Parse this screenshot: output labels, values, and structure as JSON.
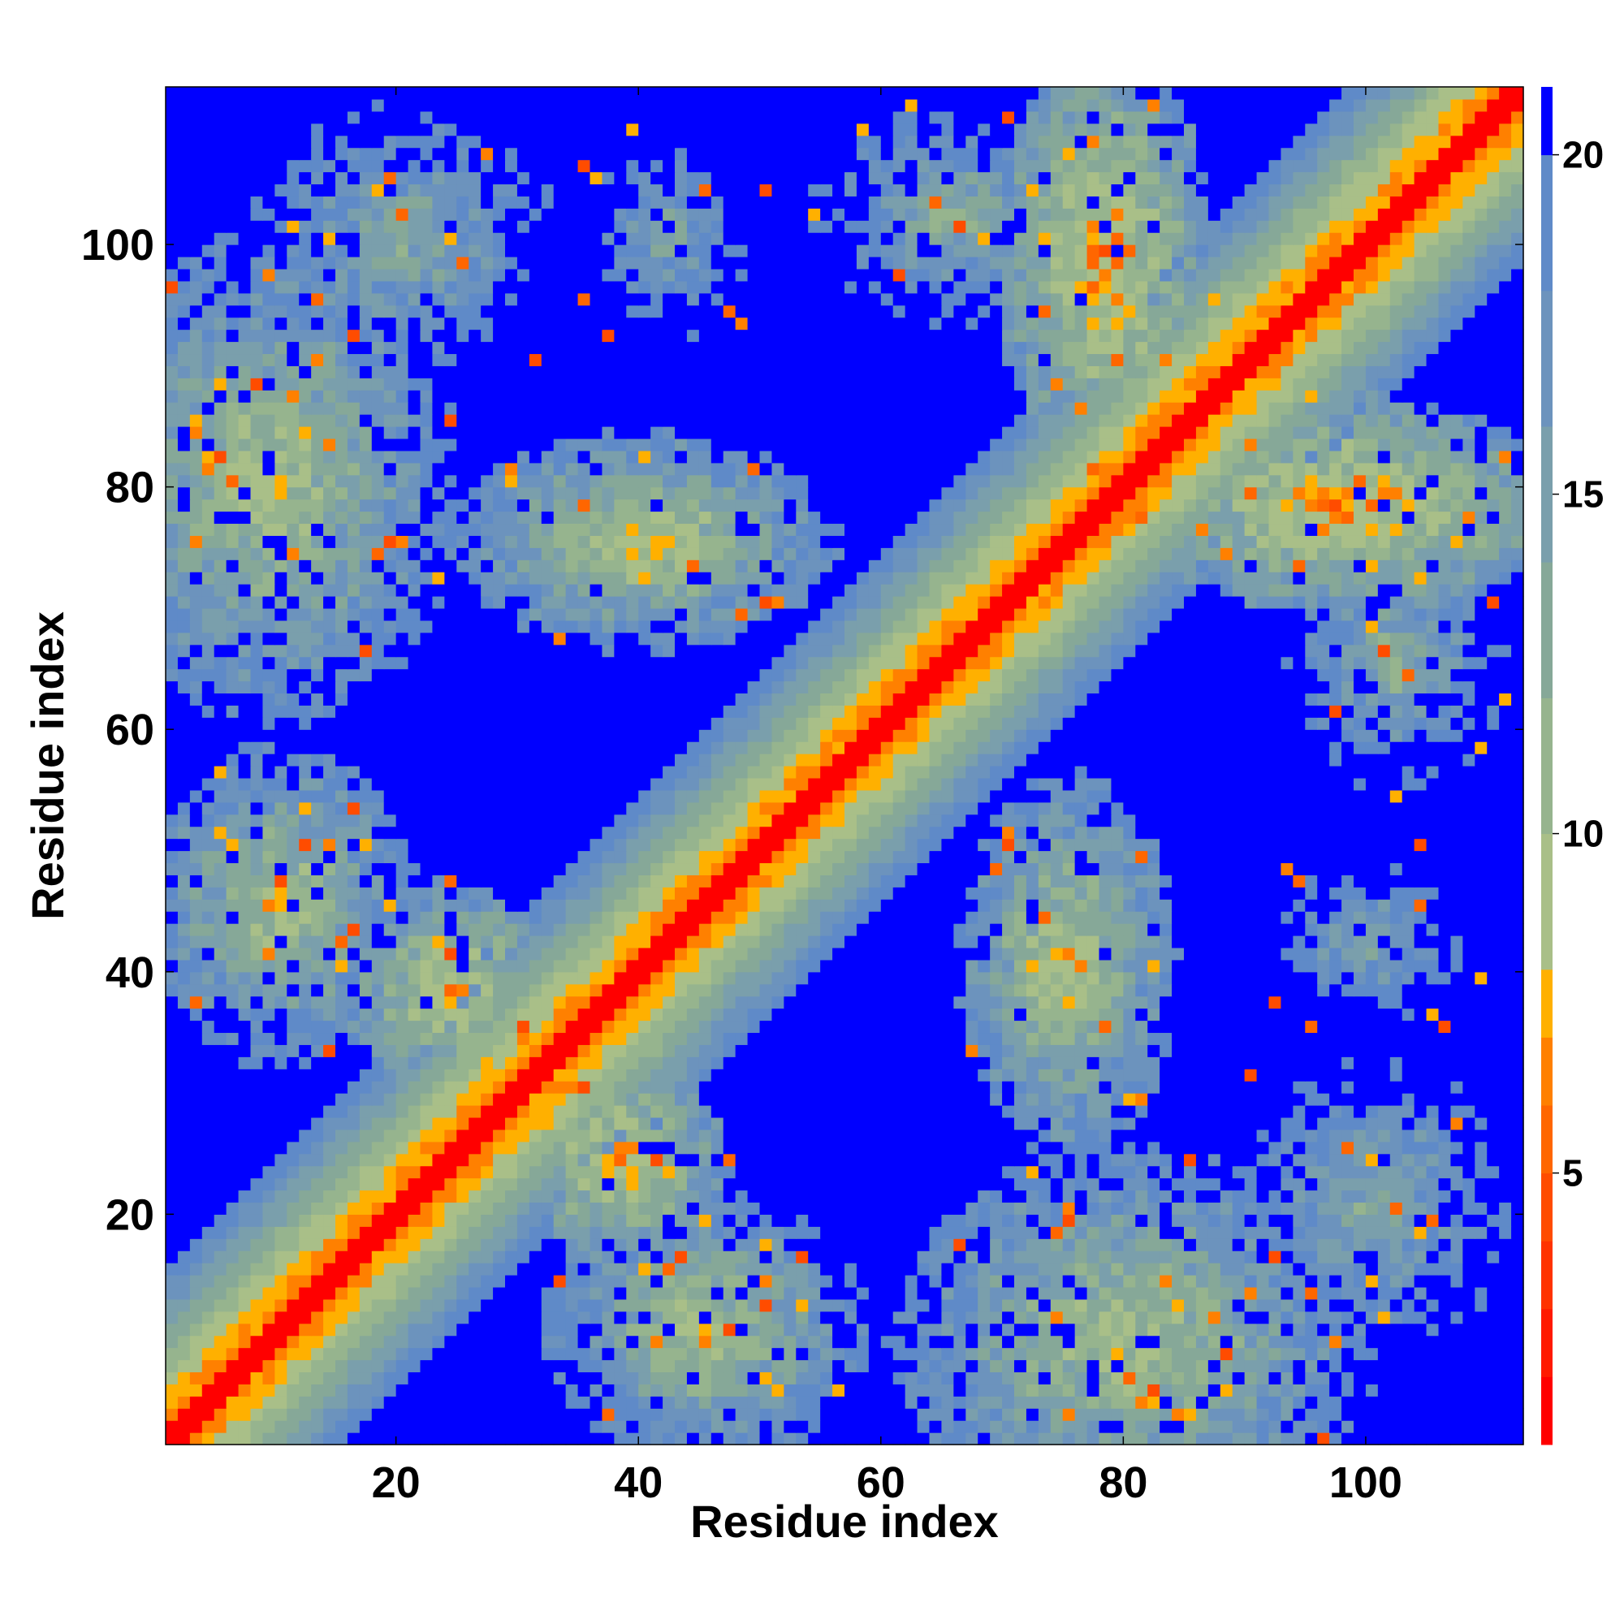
{
  "chart_data": {
    "type": "heatmap",
    "title": "",
    "xlabel": "Residue index",
    "ylabel": "Residue index",
    "n_residues": 112,
    "xlim": [
      1,
      113
    ],
    "ylim": [
      1,
      113
    ],
    "x_ticks": [
      20,
      40,
      60,
      80,
      100
    ],
    "y_ticks": [
      20,
      40,
      60,
      80,
      100
    ],
    "grid": false,
    "symmetric": true,
    "colorbar": {
      "placement": "right",
      "range": [
        1,
        21
      ],
      "ticks": [
        5,
        10,
        15,
        20
      ],
      "levels": [
        {
          "max": 2,
          "color": "#ff0000"
        },
        {
          "max": 3,
          "color": "#ff1a00"
        },
        {
          "max": 4,
          "color": "#ff3300"
        },
        {
          "max": 5,
          "color": "#ff4c00"
        },
        {
          "max": 6,
          "color": "#ff6600"
        },
        {
          "max": 7,
          "color": "#ff8000"
        },
        {
          "max": 8,
          "color": "#ffb000"
        },
        {
          "max": 10,
          "color": "#a9bf88"
        },
        {
          "max": 12,
          "color": "#96b48e"
        },
        {
          "max": 14,
          "color": "#86a898"
        },
        {
          "max": 16,
          "color": "#7a9fac"
        },
        {
          "max": 18,
          "color": "#6c93bd"
        },
        {
          "max": 20,
          "color": "#5f8ac8"
        },
        {
          "max": 21,
          "color": "#0000ff"
        }
      ]
    },
    "structure": {
      "description_values": "approximate inter-residue distance (colorbar units) derived from diagonal band plus contact lobes",
      "diagonal_core_width": 2,
      "diagonal_band_halfwidth": 14,
      "contact_lobes": [
        {
          "cx": 9,
          "cy": 80,
          "rx": 14,
          "ry": 18,
          "dmin": 9
        },
        {
          "cx": 40,
          "cy": 75,
          "rx": 14,
          "ry": 8,
          "dmin": 8
        },
        {
          "cx": 20,
          "cy": 100,
          "rx": 14,
          "ry": 13,
          "dmin": 13
        },
        {
          "cx": 42,
          "cy": 100,
          "rx": 8,
          "ry": 10,
          "dmin": 14
        },
        {
          "cx": 65,
          "cy": 102,
          "rx": 11,
          "ry": 9,
          "dmin": 12
        },
        {
          "cx": 10,
          "cy": 45,
          "rx": 10,
          "ry": 12,
          "dmin": 9
        },
        {
          "cx": 24,
          "cy": 38,
          "rx": 8,
          "ry": 8,
          "dmin": 7
        },
        {
          "cx": 78,
          "cy": 98,
          "rx": 8,
          "ry": 15,
          "dmin": 6
        },
        {
          "cx": 45,
          "cy": 15,
          "rx": 16,
          "ry": 10,
          "dmin": 8
        },
        {
          "cx": 70,
          "cy": 20,
          "rx": 12,
          "ry": 14,
          "dmin": 8
        },
        {
          "cx": 71,
          "cy": 42,
          "rx": 10,
          "ry": 10,
          "dmin": 8
        },
        {
          "cx": 100,
          "cy": 72,
          "rx": 12,
          "ry": 10,
          "dmin": 7
        },
        {
          "cx": 105,
          "cy": 45,
          "rx": 10,
          "ry": 35,
          "dmin": 11
        }
      ]
    }
  }
}
